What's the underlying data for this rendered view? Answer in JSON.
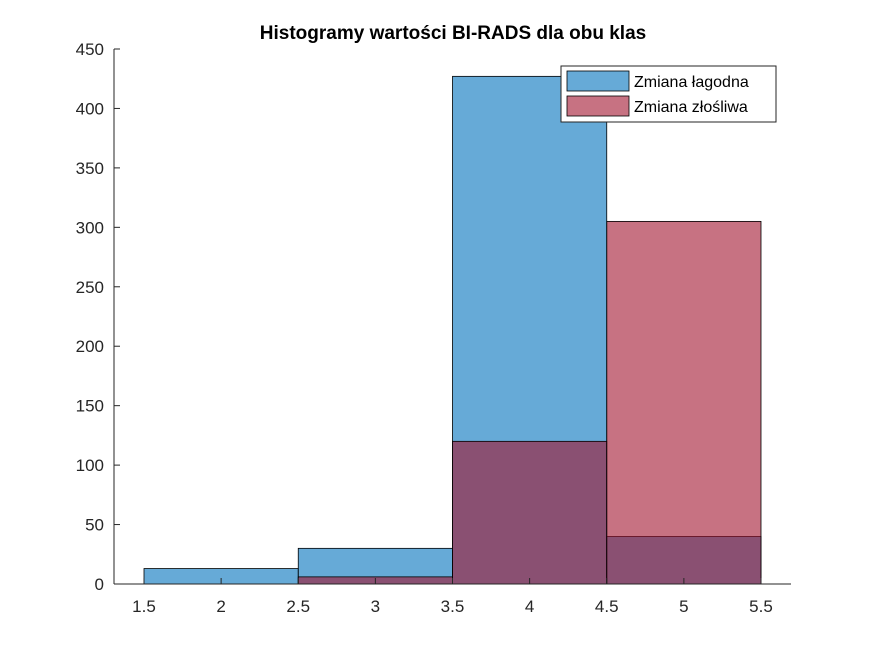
{
  "chart_data": {
    "type": "bar",
    "title": "Histogramy wartości BI-RADS dla obu klas",
    "xlabel": "",
    "ylabel": "",
    "xlim": [
      1.5,
      5.5
    ],
    "ylim": [
      0,
      450
    ],
    "xticks": [
      "1.5",
      "2",
      "2.5",
      "3",
      "3.5",
      "4",
      "4.5",
      "5",
      "5.5"
    ],
    "xtick_values": [
      1.5,
      2,
      2.5,
      3,
      3.5,
      4,
      4.5,
      5,
      5.5
    ],
    "yticks": [
      "0",
      "50",
      "100",
      "150",
      "200",
      "250",
      "300",
      "350",
      "400",
      "450"
    ],
    "ytick_values": [
      0,
      50,
      100,
      150,
      200,
      250,
      300,
      350,
      400,
      450
    ],
    "grid": false,
    "legend_position": "top-right",
    "bin_edges": [
      1.5,
      2.5,
      3.5,
      4.5,
      5.5
    ],
    "series": [
      {
        "name": "Zmiana łagodna",
        "color": "#0072BD",
        "alpha": 0.6,
        "values": [
          13,
          30,
          427,
          40
        ]
      },
      {
        "name": "Zmiana złośliwa",
        "color": "#A2142F",
        "alpha": 0.6,
        "values": [
          0,
          6,
          120,
          305
        ]
      }
    ]
  }
}
